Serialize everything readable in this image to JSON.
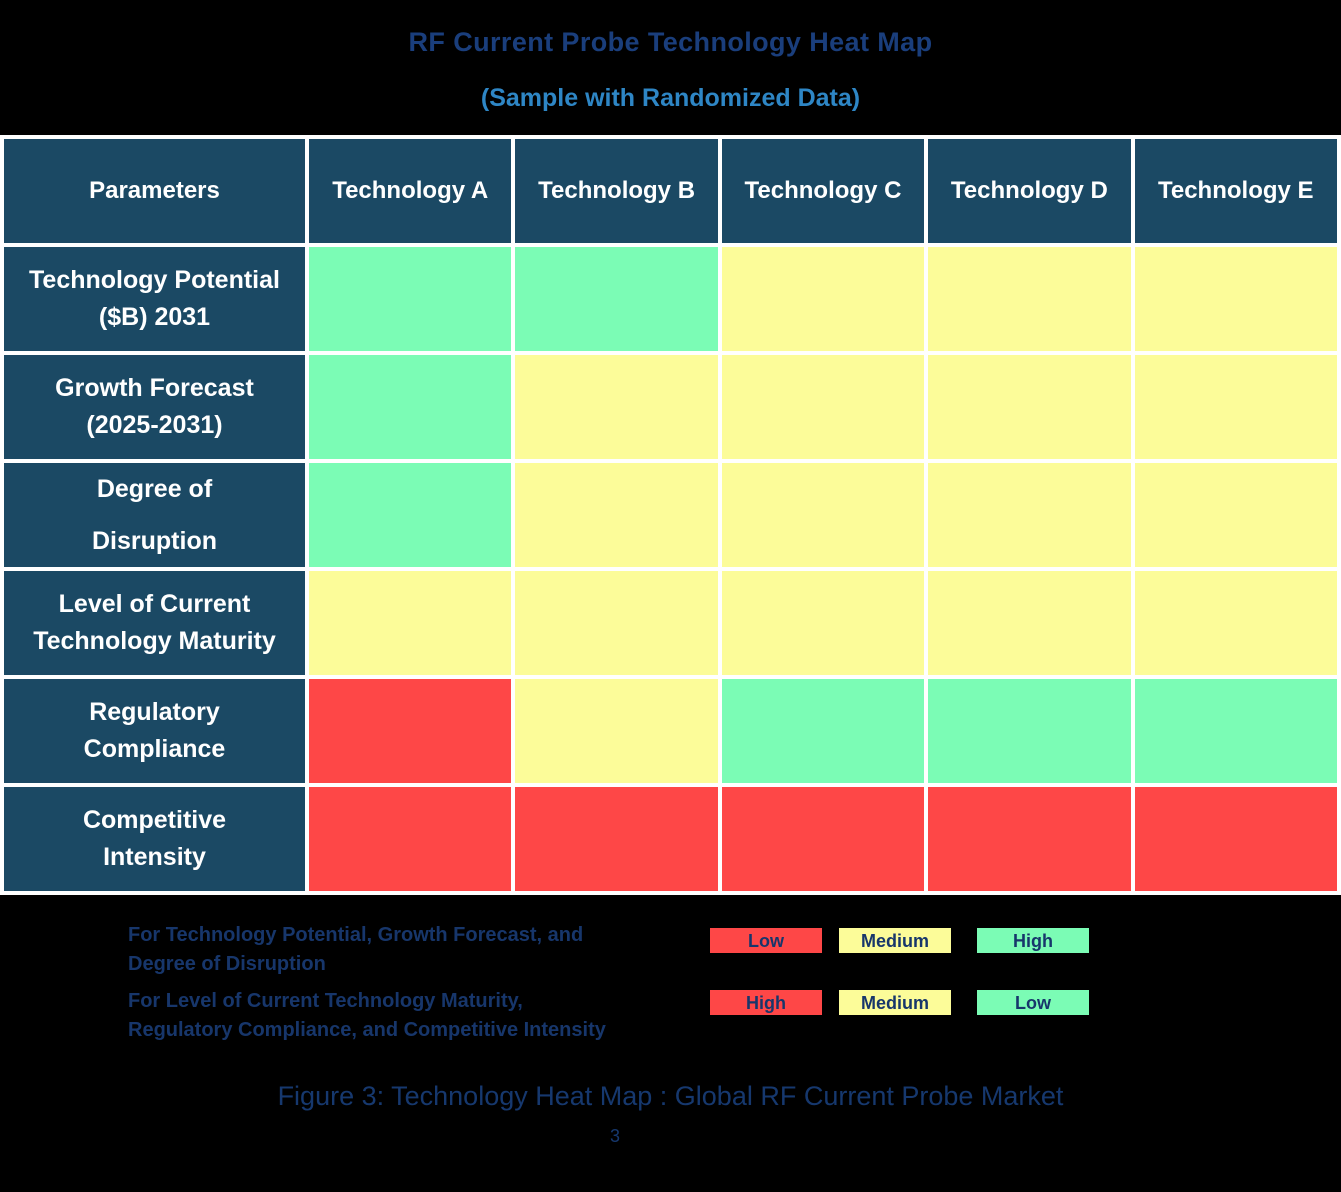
{
  "title": {
    "text": "RF Current Probe Technology Heat Map"
  },
  "subtitle": {
    "text": "(Sample with Randomized Data)"
  },
  "colors": {
    "background": "#000000",
    "grid_lines": "#FFFFFF",
    "header_cell": "#1B4964",
    "green": "#7BFCB5",
    "yellow": "#FCFC99",
    "red": "#FE4747",
    "title_text": "#1A3E7C",
    "subtitle_text": "#2E86C5",
    "table_text": "#FFFFFF",
    "note_text": "#17366B",
    "caption_text": "#16386E"
  },
  "chart_data": {
    "type": "heatmap",
    "title": "RF Current Probe Technology Heat Map",
    "subtitle": "(Sample with Randomized Data)",
    "columns": [
      "Parameters",
      "Technology A",
      "Technology B",
      "Technology C",
      "Technology D",
      "Technology E"
    ],
    "rows": [
      {
        "label_lines": [
          "Technology Potential",
          "($B) 2031"
        ],
        "cells": [
          {
            "value": "High",
            "color": "green"
          },
          {
            "value": "High",
            "color": "green"
          },
          {
            "value": "Medium",
            "color": "yellow"
          },
          {
            "value": "Medium",
            "color": "yellow"
          },
          {
            "value": "Medium",
            "color": "yellow"
          }
        ]
      },
      {
        "label_lines": [
          "Growth Forecast",
          "(2025-2031)"
        ],
        "cells": [
          {
            "value": "High",
            "color": "green"
          },
          {
            "value": "Medium",
            "color": "yellow"
          },
          {
            "value": "Medium",
            "color": "yellow"
          },
          {
            "value": "Medium",
            "color": "yellow"
          },
          {
            "value": "Medium",
            "color": "yellow"
          }
        ]
      },
      {
        "label_lines": [
          "Degree of",
          "Disruption"
        ],
        "cells": [
          {
            "value": "High",
            "color": "green"
          },
          {
            "value": "Medium",
            "color": "yellow"
          },
          {
            "value": "Medium",
            "color": "yellow"
          },
          {
            "value": "Medium",
            "color": "yellow"
          },
          {
            "value": "Medium",
            "color": "yellow"
          }
        ]
      },
      {
        "label_lines": [
          "Level of Current",
          "Technology Maturity"
        ],
        "cells": [
          {
            "value": "Medium",
            "color": "yellow"
          },
          {
            "value": "Medium",
            "color": "yellow"
          },
          {
            "value": "Medium",
            "color": "yellow"
          },
          {
            "value": "Medium",
            "color": "yellow"
          },
          {
            "value": "Medium",
            "color": "yellow"
          }
        ]
      },
      {
        "label_lines": [
          "Regulatory",
          "Compliance"
        ],
        "cells": [
          {
            "value": "High",
            "color": "red"
          },
          {
            "value": "Medium",
            "color": "yellow"
          },
          {
            "value": "Low",
            "color": "green"
          },
          {
            "value": "Low",
            "color": "green"
          },
          {
            "value": "Low",
            "color": "green"
          }
        ]
      },
      {
        "label_lines": [
          "Competitive",
          "Intensity"
        ],
        "cells": [
          {
            "value": "High",
            "color": "red"
          },
          {
            "value": "High",
            "color": "red"
          },
          {
            "value": "High",
            "color": "red"
          },
          {
            "value": "High",
            "color": "red"
          },
          {
            "value": "High",
            "color": "red"
          }
        ]
      }
    ],
    "color_encoding": {
      "technology_potential_growth_degree": {
        "red": "Low",
        "yellow": "Medium",
        "green": "High"
      },
      "maturity_regulatory_competitive": {
        "red": "High",
        "yellow": "Medium",
        "green": "Low"
      }
    }
  },
  "legend": {
    "groups": [
      {
        "label_lines": [
          "For Technology Potential, Growth Forecast, and",
          "Degree of Disruption"
        ],
        "items": [
          {
            "text": "Low",
            "color": "red"
          },
          {
            "text": "Medium",
            "color": "yellow"
          },
          {
            "text": "High",
            "color": "green"
          }
        ]
      },
      {
        "label_lines": [
          "For Level of Current Technology Maturity,",
          "Regulatory Compliance, and Competitive Intensity"
        ],
        "items": [
          {
            "text": "High",
            "color": "red"
          },
          {
            "text": "Medium",
            "color": "yellow"
          },
          {
            "text": "Low",
            "color": "green"
          }
        ]
      }
    ]
  },
  "caption": {
    "text": "Figure 3: Technology Heat Map : Global RF Current Probe Market"
  },
  "page_number": "3"
}
